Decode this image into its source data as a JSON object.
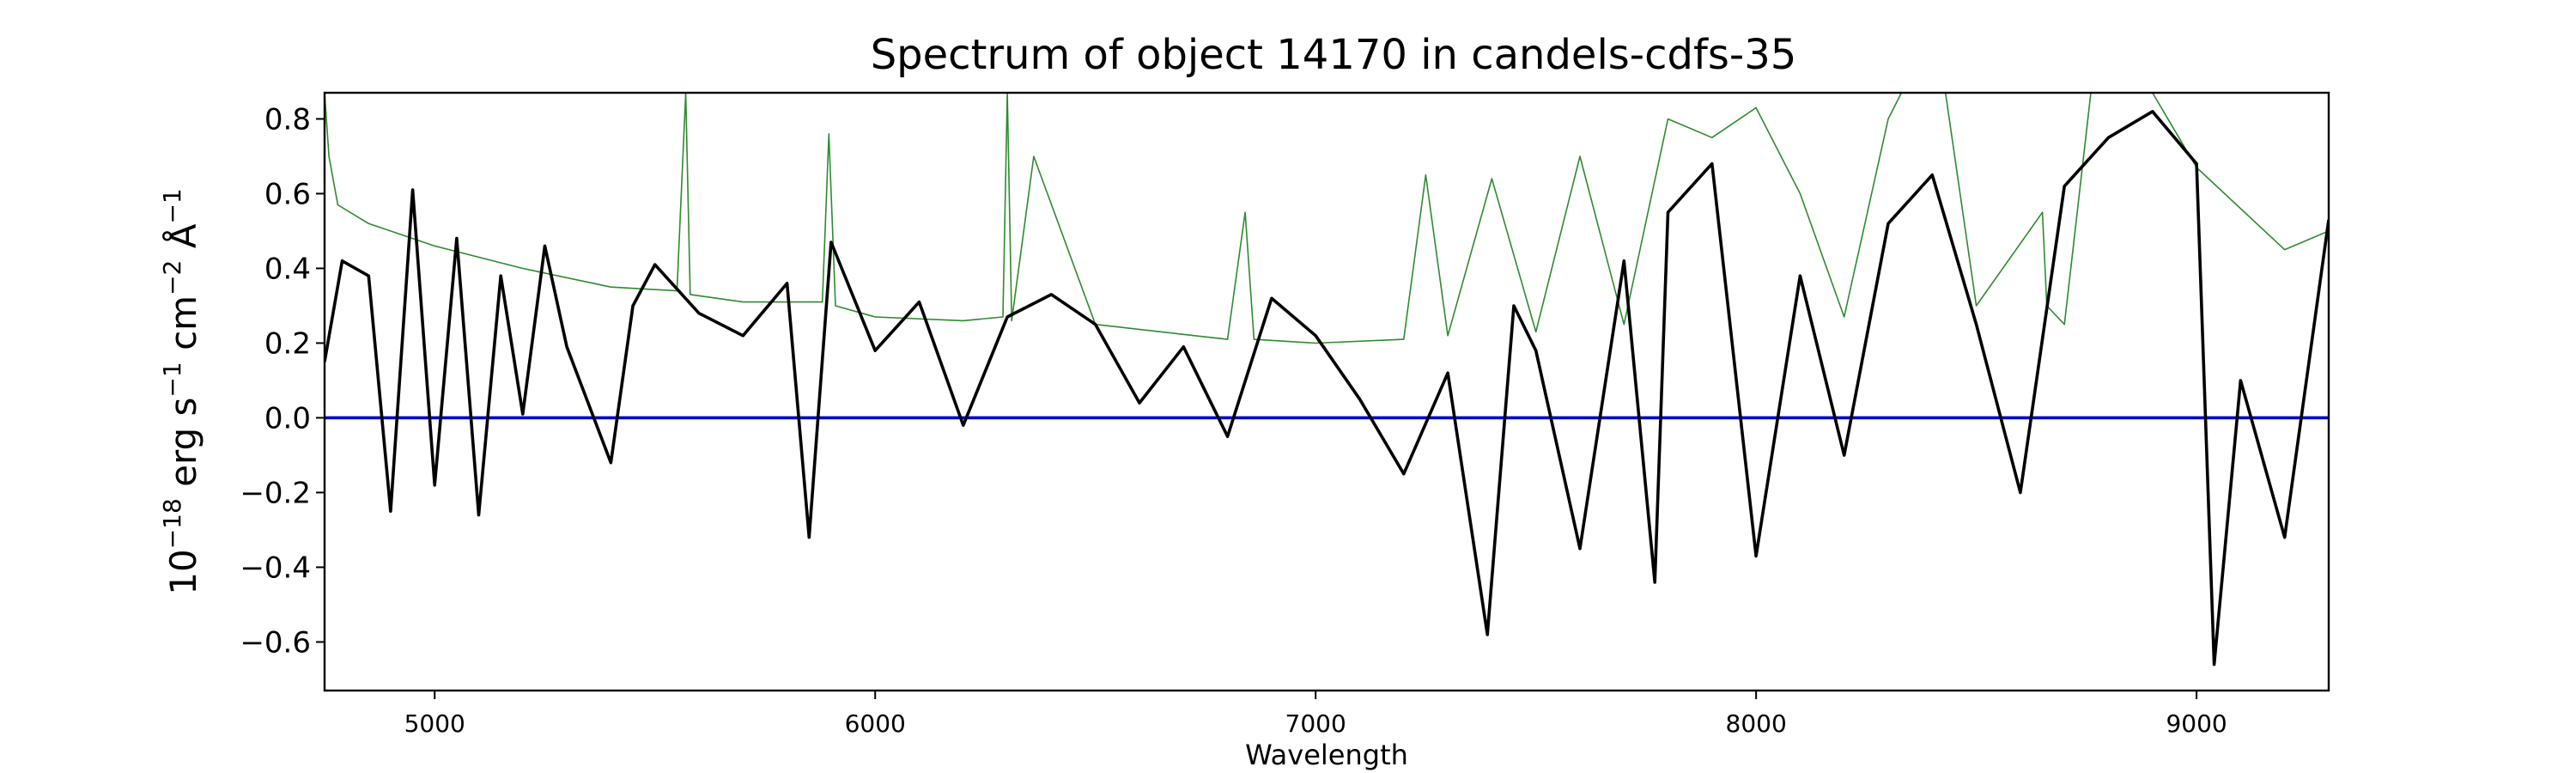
{
  "chart_data": {
    "type": "line",
    "title": "Spectrum of object 14170 in candels-cdfs-35",
    "xlabel": "Wavelength",
    "ylabel": {
      "prefix": "10",
      "exp1": "−18",
      "unit1": " erg s",
      "exp2": "−1",
      "unit2": " cm",
      "exp3": "−2",
      "unit3": " Å",
      "exp4": "−1"
    },
    "xlim": [
      4750,
      9300
    ],
    "ylim": [
      -0.73,
      0.87
    ],
    "xticks": [
      5000,
      6000,
      7000,
      8000,
      9000
    ],
    "xtick_labels": [
      "5000",
      "6000",
      "7000",
      "8000",
      "9000"
    ],
    "yticks": [
      -0.6,
      -0.4,
      -0.2,
      0.0,
      0.2,
      0.4,
      0.6,
      0.8
    ],
    "ytick_labels": [
      "−0.6",
      "−0.4",
      "−0.2",
      "0.0",
      "0.2",
      "0.4",
      "0.6",
      "0.8"
    ],
    "grid": false,
    "colors": {
      "flux": "#000000",
      "error": "#2e8b2e",
      "zero": "#0000cc"
    },
    "series": [
      {
        "role": "flux",
        "x": [
          4750,
          4790,
          4850,
          4900,
          4950,
          5000,
          5050,
          5100,
          5150,
          5200,
          5250,
          5300,
          5400,
          5450,
          5500,
          5600,
          5700,
          5800,
          5850,
          5900,
          6000,
          6100,
          6200,
          6300,
          6400,
          6500,
          6600,
          6700,
          6800,
          6900,
          7000,
          7100,
          7200,
          7300,
          7390,
          7450,
          7500,
          7600,
          7700,
          7770,
          7800,
          7900,
          8000,
          8100,
          8200,
          8300,
          8400,
          8500,
          8600,
          8700,
          8800,
          8900,
          9000,
          9040,
          9100,
          9200,
          9300
        ],
        "y": [
          0.15,
          0.42,
          0.38,
          -0.25,
          0.61,
          -0.18,
          0.48,
          -0.26,
          0.38,
          0.01,
          0.46,
          0.19,
          -0.12,
          0.3,
          0.41,
          0.28,
          0.22,
          0.36,
          -0.32,
          0.47,
          0.18,
          0.31,
          -0.02,
          0.27,
          0.33,
          0.25,
          0.04,
          0.19,
          -0.05,
          0.32,
          0.22,
          0.05,
          -0.15,
          0.12,
          -0.58,
          0.3,
          0.18,
          -0.35,
          0.42,
          -0.44,
          0.55,
          0.68,
          -0.37,
          0.38,
          -0.1,
          0.52,
          0.65,
          0.25,
          -0.2,
          0.62,
          0.75,
          0.82,
          0.68,
          -0.66,
          0.1,
          -0.32,
          0.53
        ]
      },
      {
        "role": "error",
        "x": [
          4750,
          4760,
          4780,
          4850,
          5000,
          5200,
          5400,
          5550,
          5570,
          5580,
          5700,
          5880,
          5895,
          5910,
          6000,
          6200,
          6290,
          6300,
          6310,
          6360,
          6500,
          6800,
          6840,
          6860,
          7000,
          7200,
          7250,
          7300,
          7400,
          7500,
          7600,
          7700,
          7800,
          7900,
          8000,
          8100,
          8200,
          8300,
          8330,
          8380,
          8430,
          8500,
          8650,
          8660,
          8700,
          8760,
          8800,
          8850,
          8900,
          9000,
          9200,
          9300
        ],
        "y": [
          0.87,
          0.7,
          0.57,
          0.52,
          0.46,
          0.4,
          0.35,
          0.34,
          0.87,
          0.33,
          0.31,
          0.31,
          0.76,
          0.3,
          0.27,
          0.26,
          0.27,
          0.87,
          0.26,
          0.7,
          0.25,
          0.21,
          0.55,
          0.21,
          0.2,
          0.21,
          0.65,
          0.22,
          0.64,
          0.23,
          0.7,
          0.25,
          0.8,
          0.75,
          0.83,
          0.6,
          0.27,
          0.8,
          0.87,
          0.87,
          0.87,
          0.3,
          0.55,
          0.3,
          0.25,
          0.87,
          0.87,
          0.87,
          0.87,
          0.67,
          0.45,
          0.5
        ]
      },
      {
        "role": "zero",
        "x": [
          4750,
          9300
        ],
        "y": [
          0.0,
          0.0
        ]
      }
    ]
  }
}
